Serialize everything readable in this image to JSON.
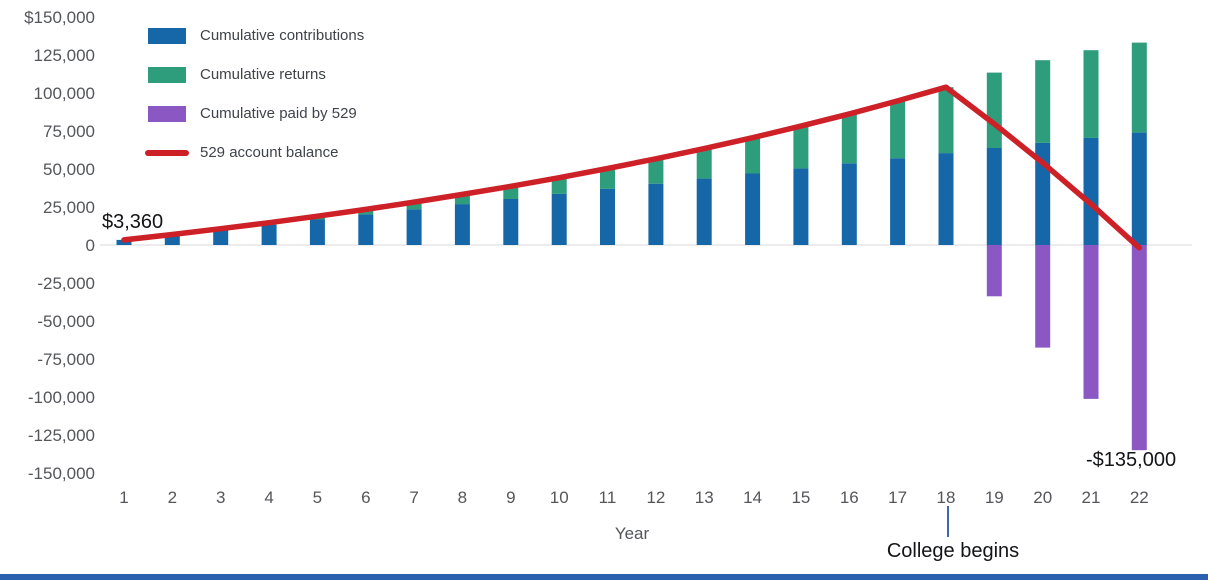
{
  "chart_data": {
    "type": "bar",
    "subtype": "stacked-bars-with-line",
    "title": "",
    "xlabel": "Year",
    "ylabel": "",
    "ylim": [
      -150000,
      150000
    ],
    "ytick_step": 25000,
    "ytick_labels": [
      "$150,000",
      "125,000",
      "100,000",
      "75,000",
      "50,000",
      "25,000",
      "0",
      "-25,000",
      "-50,000",
      "-75,000",
      "-100,000",
      "-125,000",
      "-150,000"
    ],
    "categories": [
      1,
      2,
      3,
      4,
      5,
      6,
      7,
      8,
      9,
      10,
      11,
      12,
      13,
      14,
      15,
      16,
      17,
      18,
      19,
      20,
      21,
      22
    ],
    "grid": false,
    "legend_position": "top-left",
    "series": [
      {
        "name": "Cumulative contributions",
        "type": "bar",
        "color": "#1667a8",
        "values": [
          3360,
          6720,
          10080,
          13440,
          16800,
          20160,
          23520,
          26880,
          30240,
          33600,
          36960,
          40320,
          43680,
          47040,
          50400,
          53760,
          57120,
          60480,
          63840,
          67200,
          70560,
          73920
        ]
      },
      {
        "name": "Cumulative returns",
        "type": "bar",
        "color": "#2e9d7c",
        "values": [
          0,
          200,
          620,
          1260,
          2140,
          3280,
          4680,
          6380,
          8370,
          10690,
          13340,
          16360,
          19760,
          23570,
          27810,
          32500,
          37680,
          43360,
          49590,
          54380,
          57620,
          59240
        ]
      },
      {
        "name": "Cumulative paid by 529",
        "type": "bar",
        "color": "#8a57c3",
        "values": [
          0,
          0,
          0,
          0,
          0,
          0,
          0,
          0,
          0,
          0,
          0,
          0,
          0,
          0,
          0,
          0,
          0,
          0,
          -33750,
          -67500,
          -101250,
          -135000
        ]
      },
      {
        "name": "529 account balance",
        "type": "line",
        "color": "#cd2027",
        "values": [
          3360,
          6920,
          10700,
          14700,
          18940,
          23440,
          28200,
          33260,
          38610,
          44290,
          50300,
          56680,
          63440,
          70610,
          78210,
          86260,
          94800,
          103840,
          79680,
          54080,
          26930,
          -1840
        ]
      }
    ],
    "annotations": {
      "start_value": "$3,360",
      "end_value": "-$135,000",
      "college_begins": "College begins",
      "college_begins_year": 18
    },
    "axis_text_color": "#54565a",
    "zero_line_color": "#d8dadc",
    "callout_line_color": "#3e68b2"
  },
  "footer": {
    "accent_color": "#2b61ae"
  }
}
